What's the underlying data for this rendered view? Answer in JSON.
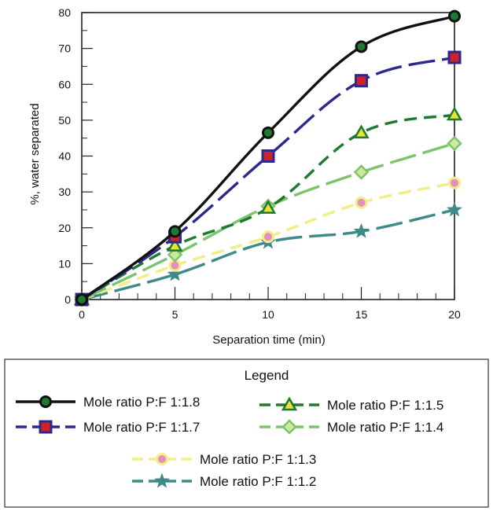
{
  "chart_data": {
    "type": "line",
    "xlabel": "Separation time (min)",
    "ylabel": "%, water separated",
    "xlim": [
      0,
      20
    ],
    "ylim": [
      0,
      80
    ],
    "x_ticks": [
      0,
      5,
      10,
      15,
      20
    ],
    "y_ticks": [
      0,
      10,
      20,
      30,
      40,
      50,
      60,
      70,
      80
    ],
    "x": [
      0,
      5,
      10,
      15,
      20
    ],
    "legend_title": "Legend",
    "legend_position": "bottom",
    "series": [
      {
        "name": "Mole ratio P:F 1:1.8",
        "values": [
          0,
          19,
          46.5,
          70.5,
          79
        ],
        "color": "#111111",
        "marker": "circle",
        "marker_fill": "#1e7a2e",
        "dash": "solid"
      },
      {
        "name": "Mole ratio P:F 1:1.7",
        "values": [
          0,
          17.5,
          40,
          61,
          67.5
        ],
        "color": "#2b2a8c",
        "marker": "square",
        "marker_fill": "#d0202a",
        "dash": "longdash"
      },
      {
        "name": "Mole ratio P:F 1:1.5",
        "values": [
          0,
          15,
          25.5,
          46.5,
          51.5
        ],
        "color": "#1e7a2e",
        "marker": "triangle",
        "marker_fill": "#e8e23a",
        "dash": "dash"
      },
      {
        "name": "Mole ratio P:F 1:1.4",
        "values": [
          0,
          12.5,
          26,
          35.5,
          43.5
        ],
        "color": "#7cc46a",
        "marker": "diamond",
        "marker_fill": "#cfe8a0",
        "dash": "longdash"
      },
      {
        "name": "Mole ratio P:F 1:1.3",
        "values": [
          0,
          9.5,
          17.5,
          27,
          32.5
        ],
        "color": "#f2ee86",
        "marker": "circle",
        "marker_fill": "#e58fc0",
        "dash": "dash"
      },
      {
        "name": "Mole ratio P:F 1:1.2",
        "values": [
          0,
          7,
          16,
          19,
          25
        ],
        "color": "#3c8b88",
        "marker": "star",
        "marker_fill": "#3c8b88",
        "dash": "longdash"
      }
    ]
  }
}
